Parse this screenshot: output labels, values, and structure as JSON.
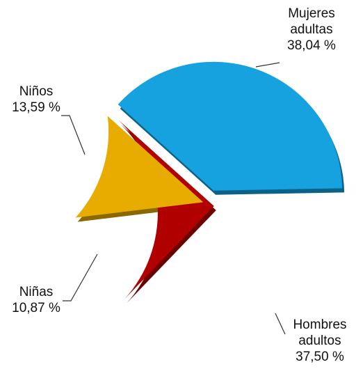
{
  "chart_data": {
    "type": "pie",
    "categories": [
      "Mujeres adultas",
      "Hombres adultos",
      "Niñas",
      "Niños"
    ],
    "values": [
      38.04,
      37.5,
      10.87,
      13.59
    ],
    "value_labels": [
      "38,04 %",
      "37,50 %",
      "10,87 %",
      "13,59 %"
    ],
    "colors": [
      "#15a2df",
      "#b10000",
      "#e8ab00",
      "#0b8a10"
    ]
  }
}
